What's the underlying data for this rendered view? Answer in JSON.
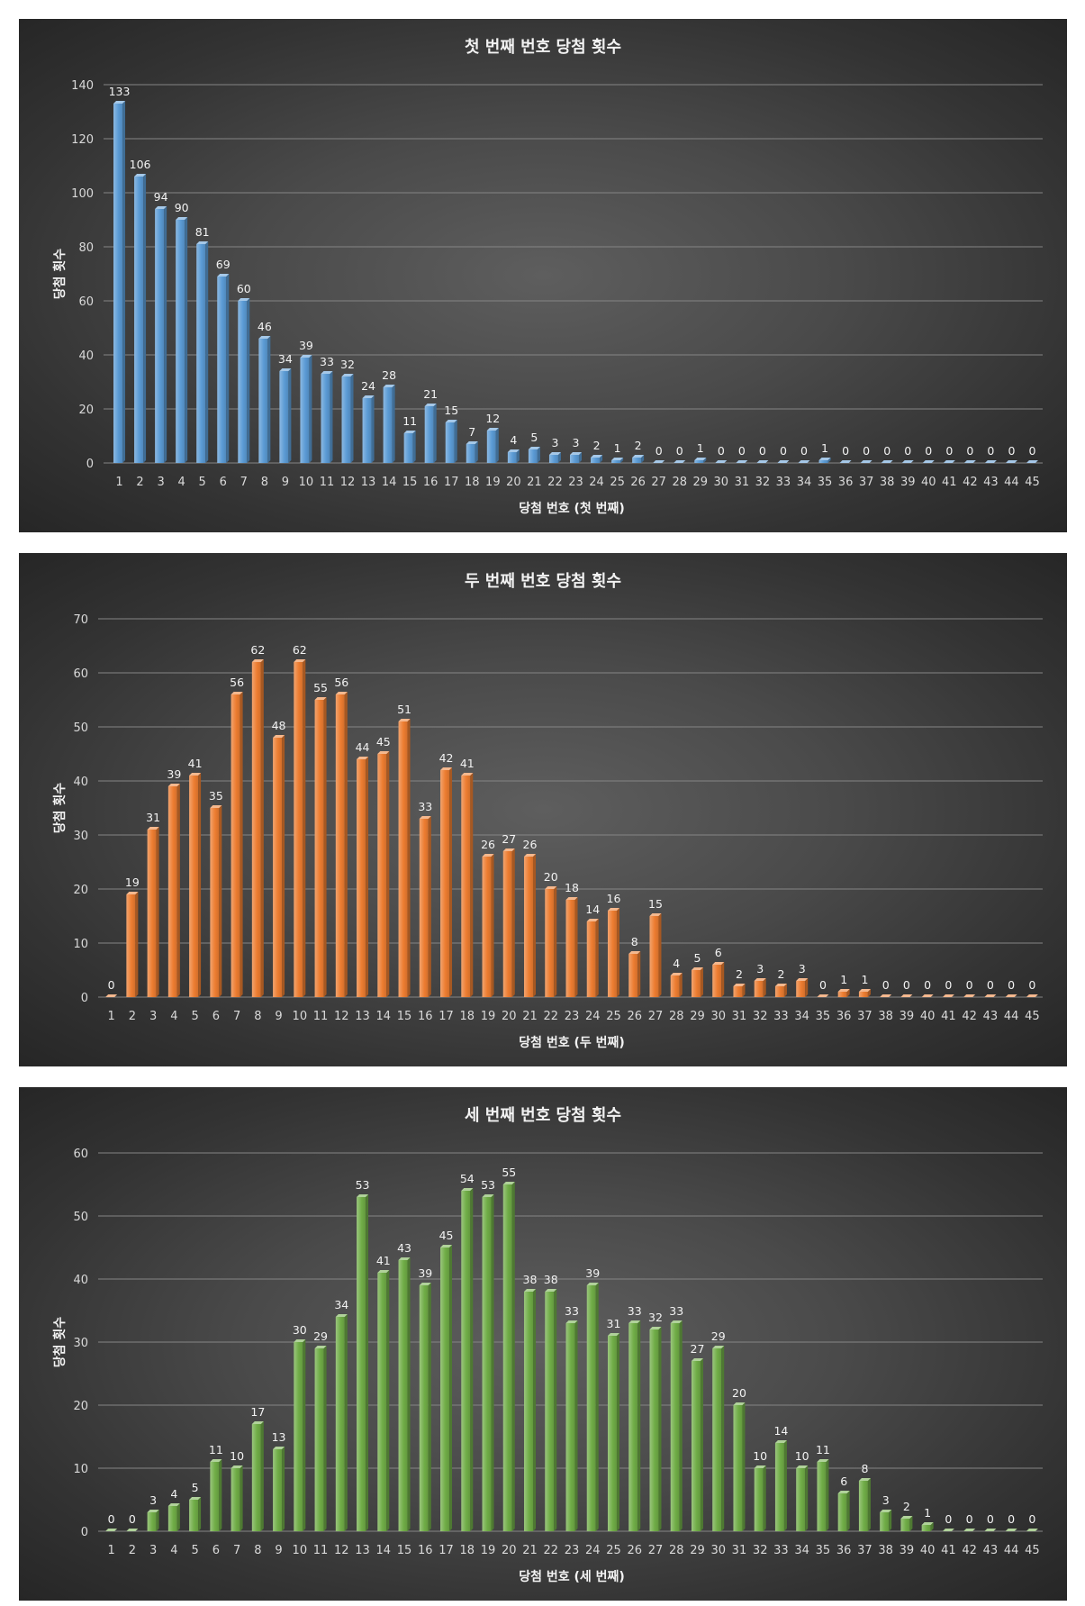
{
  "chart_data": [
    {
      "type": "bar",
      "title": "첫 번째 번호 당첨 횟수",
      "xlabel": "당첨 번호 (첫 번째)",
      "ylabel": "당첨 횟수",
      "categories": [
        "1",
        "2",
        "3",
        "4",
        "5",
        "6",
        "7",
        "8",
        "9",
        "10",
        "11",
        "12",
        "13",
        "14",
        "15",
        "16",
        "17",
        "18",
        "19",
        "20",
        "21",
        "22",
        "23",
        "24",
        "25",
        "26",
        "27",
        "28",
        "29",
        "30",
        "31",
        "32",
        "33",
        "34",
        "35",
        "36",
        "37",
        "38",
        "39",
        "40",
        "41",
        "42",
        "43",
        "44",
        "45"
      ],
      "values": [
        133,
        106,
        94,
        90,
        81,
        69,
        60,
        46,
        34,
        39,
        33,
        32,
        24,
        28,
        11,
        21,
        15,
        7,
        12,
        4,
        5,
        3,
        3,
        2,
        1,
        2,
        0,
        0,
        1,
        0,
        0,
        0,
        0,
        0,
        1,
        0,
        0,
        0,
        0,
        0,
        0,
        0,
        0,
        0,
        0
      ],
      "ylim": [
        0,
        140
      ],
      "yticks": [
        0,
        20,
        40,
        60,
        80,
        100,
        120,
        140
      ],
      "grid": true,
      "color": "#5B9BD5"
    },
    {
      "type": "bar",
      "title": "두 번째 번호 당첨 횟수",
      "xlabel": "당첨 번호 (두 번째)",
      "ylabel": "당첨 횟수",
      "categories": [
        "1",
        "2",
        "3",
        "4",
        "5",
        "6",
        "7",
        "8",
        "9",
        "10",
        "11",
        "12",
        "13",
        "14",
        "15",
        "16",
        "17",
        "18",
        "19",
        "20",
        "21",
        "22",
        "23",
        "24",
        "25",
        "26",
        "27",
        "28",
        "29",
        "30",
        "31",
        "32",
        "33",
        "34",
        "35",
        "36",
        "37",
        "38",
        "39",
        "40",
        "41",
        "42",
        "43",
        "44",
        "45"
      ],
      "values": [
        0,
        19,
        31,
        39,
        41,
        35,
        56,
        62,
        48,
        62,
        55,
        56,
        44,
        45,
        51,
        33,
        42,
        41,
        26,
        27,
        26,
        20,
        18,
        14,
        16,
        8,
        15,
        4,
        5,
        6,
        2,
        3,
        2,
        3,
        0,
        1,
        1,
        0,
        0,
        0,
        0,
        0,
        0,
        0,
        0
      ],
      "ylim": [
        0,
        70
      ],
      "yticks": [
        0,
        10,
        20,
        30,
        40,
        50,
        60,
        70
      ],
      "grid": true,
      "color": "#ED7D31"
    },
    {
      "type": "bar",
      "title": "세 번째 번호 당첨 횟수",
      "xlabel": "당첨 번호 (세 번째)",
      "ylabel": "당첨 횟수",
      "categories": [
        "1",
        "2",
        "3",
        "4",
        "5",
        "6",
        "7",
        "8",
        "9",
        "10",
        "11",
        "12",
        "13",
        "14",
        "15",
        "16",
        "17",
        "18",
        "19",
        "20",
        "21",
        "22",
        "23",
        "24",
        "25",
        "26",
        "27",
        "28",
        "29",
        "30",
        "31",
        "32",
        "33",
        "34",
        "35",
        "36",
        "37",
        "38",
        "39",
        "40",
        "41",
        "42",
        "43",
        "44",
        "45"
      ],
      "values": [
        0,
        0,
        3,
        4,
        5,
        11,
        10,
        17,
        13,
        30,
        29,
        34,
        53,
        41,
        43,
        39,
        45,
        54,
        53,
        55,
        38,
        38,
        33,
        39,
        31,
        33,
        32,
        33,
        27,
        29,
        20,
        10,
        14,
        10,
        11,
        6,
        8,
        3,
        2,
        1,
        0,
        0,
        0,
        0,
        0
      ],
      "ylim": [
        0,
        60
      ],
      "yticks": [
        0,
        10,
        20,
        30,
        40,
        50,
        60
      ],
      "grid": true,
      "color": "#70AD47"
    }
  ]
}
